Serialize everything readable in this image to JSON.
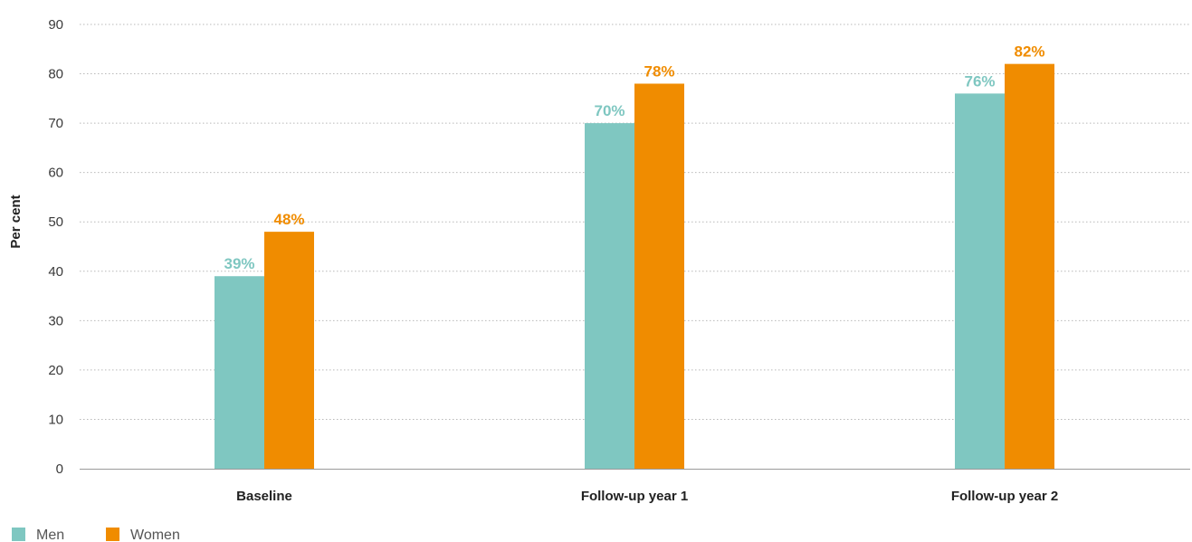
{
  "chart_data": {
    "type": "bar",
    "ylabel": "Per cent",
    "ylim": [
      0,
      90
    ],
    "yticks": [
      0,
      10,
      20,
      30,
      40,
      50,
      60,
      70,
      80,
      90
    ],
    "grid": true,
    "legend_position": "bottom-left",
    "categories": [
      "Baseline",
      "Follow-up year 1",
      "Follow-up year 2"
    ],
    "series": [
      {
        "name": "Men",
        "color": "#7fc7c1",
        "values": [
          39,
          70,
          76
        ],
        "labels": [
          "39%",
          "70%",
          "76%"
        ]
      },
      {
        "name": "Women",
        "color": "#f08c00",
        "values": [
          48,
          78,
          82
        ],
        "labels": [
          "48%",
          "78%",
          "82%"
        ]
      }
    ]
  }
}
